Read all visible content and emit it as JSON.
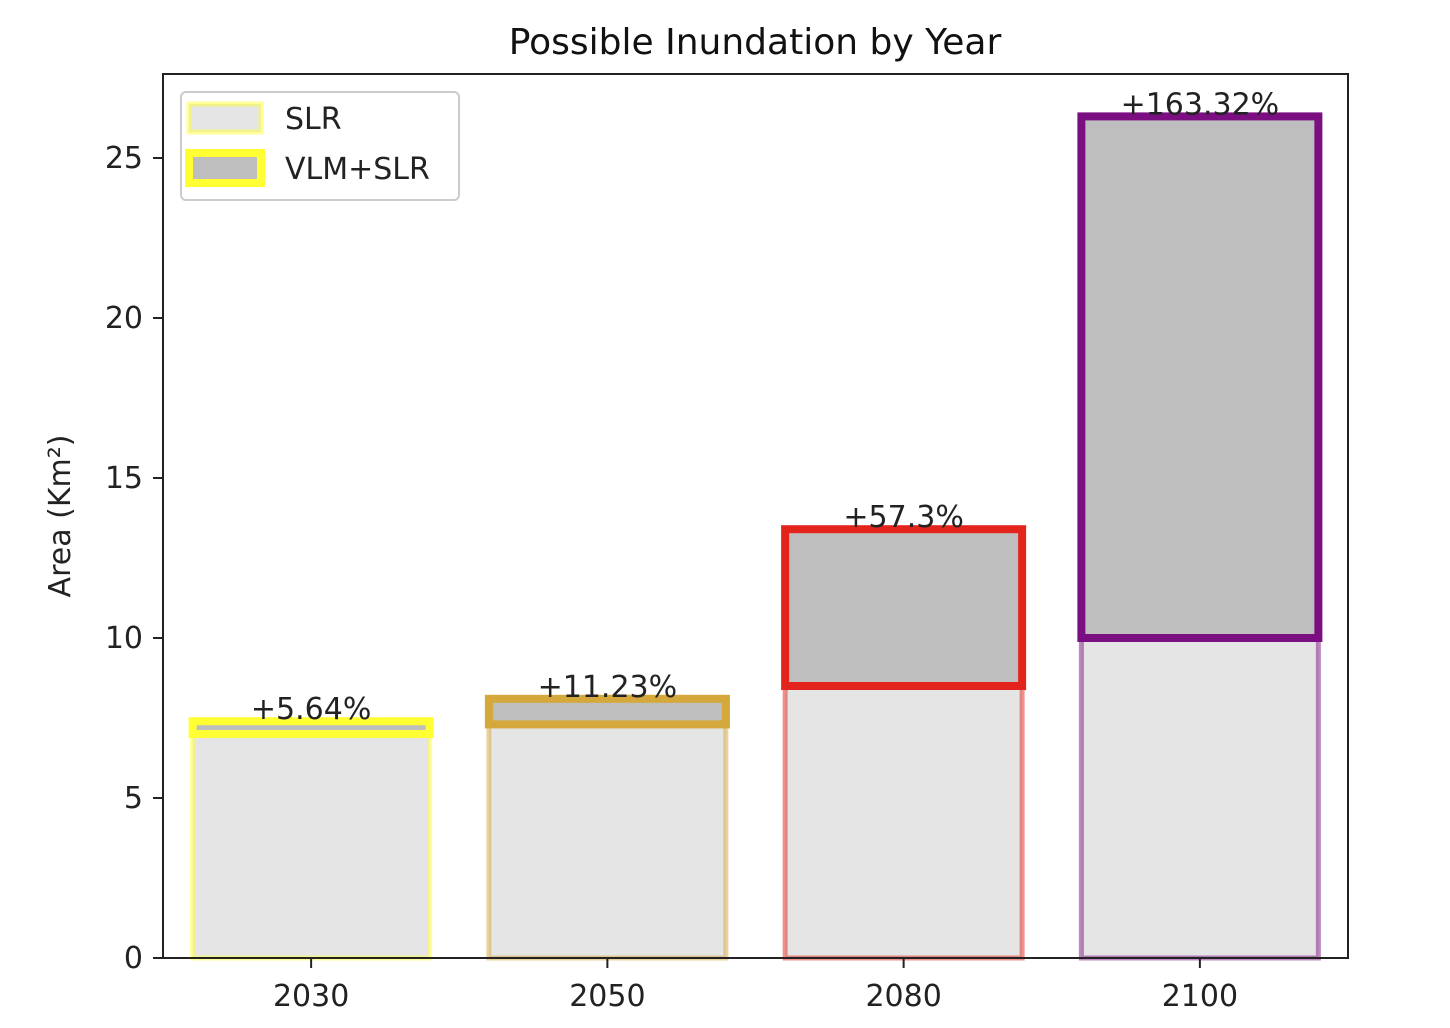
{
  "chart_data": {
    "type": "bar",
    "title": "Possible Inundation by Year",
    "xlabel": "",
    "ylabel": "Area (Km²)",
    "ylim": [
      0,
      27.6
    ],
    "yticks": [
      0,
      5,
      10,
      15,
      20,
      25
    ],
    "categories": [
      "2030",
      "2050",
      "2080",
      "2100"
    ],
    "series": [
      {
        "name": "SLR",
        "values": [
          7.0,
          7.3,
          8.5,
          10.0
        ]
      },
      {
        "name": "VLM+SLR",
        "values": [
          7.4,
          8.1,
          13.4,
          26.3
        ]
      }
    ],
    "data_labels": [
      "+5.64%",
      "+11.23%",
      "+57.3%",
      "+163.32%"
    ],
    "bar_edge_colors": [
      "#ffff33",
      "#d4a83a",
      "#e3241c",
      "#7b0f82"
    ],
    "slr_fill": "#e5e5e5",
    "vlm_fill": "#bebebe",
    "legend_edge_color": "#ffff33",
    "legend_position": "upper-left",
    "grid": false
  }
}
